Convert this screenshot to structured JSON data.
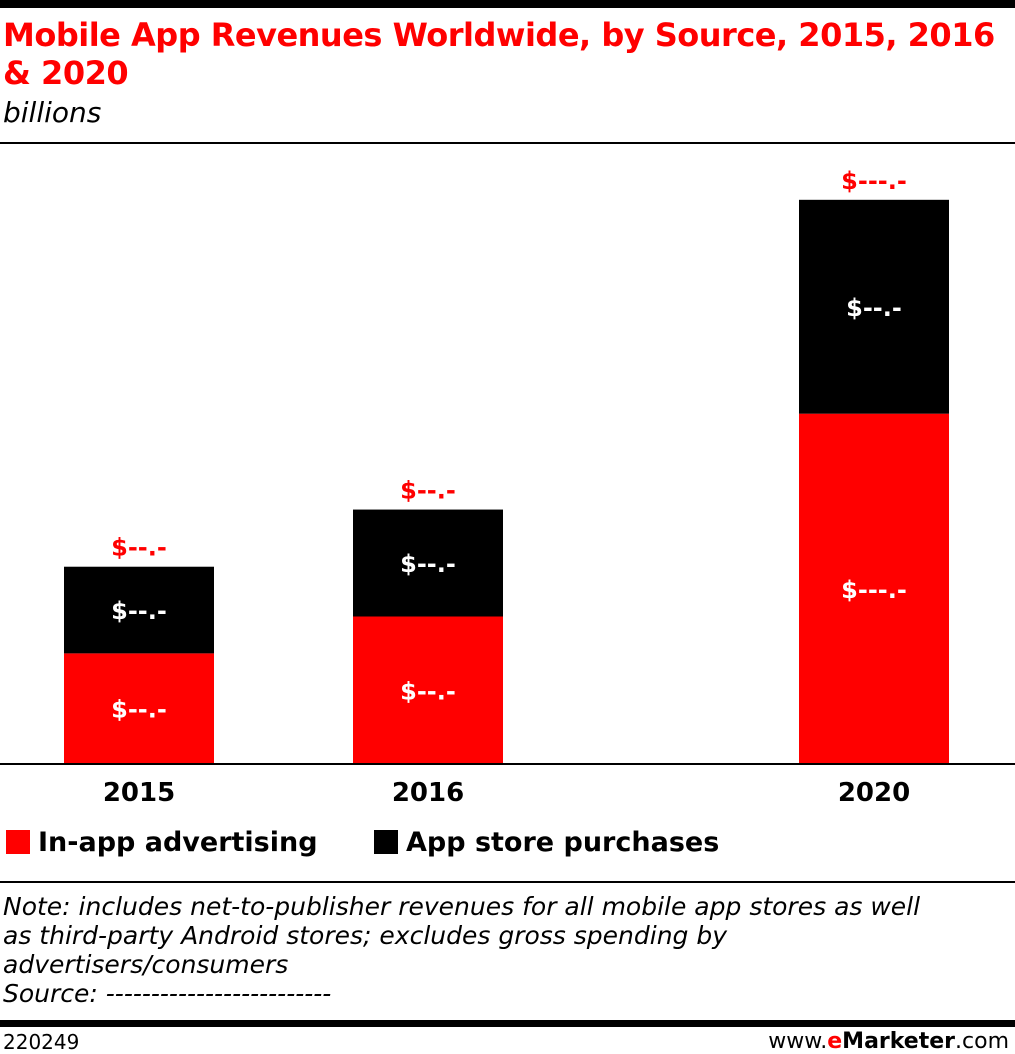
{
  "header": {
    "title": "Mobile App Revenues Worldwide, by Source, 2015, 2016 & 2020",
    "subtitle": "billions"
  },
  "chart_data": {
    "type": "bar",
    "stacked": true,
    "categories": [
      "2015",
      "2016",
      "2020"
    ],
    "series": [
      {
        "name": "In-app advertising",
        "color": "#ff0000",
        "label_color": "#ffffff",
        "values": [
          30,
          40,
          95
        ],
        "labels": [
          "$--.-",
          "$--.-",
          "$---.-"
        ]
      },
      {
        "name": "App store purchases",
        "color": "#000000",
        "label_color": "#ffffff",
        "values": [
          23.5,
          29,
          58
        ],
        "labels": [
          "$--.-",
          "$--.-",
          "$--.-"
        ]
      }
    ],
    "totals": {
      "labels": [
        "$--.-",
        "$--.-",
        "$---.-"
      ],
      "color": "#ff0000"
    },
    "ylim": [
      0,
      160
    ],
    "grid": false,
    "legend_position": "bottom-left"
  },
  "legend": {
    "items": [
      {
        "label": "In-app advertising",
        "color": "#ff0000"
      },
      {
        "label": "App store purchases",
        "color": "#000000"
      }
    ]
  },
  "footer": {
    "note_lines": [
      "Note: includes net-to-publisher revenues for all mobile app stores as well",
      "as third-party Android stores; excludes gross spending by",
      "advertisers/consumers"
    ],
    "source": "Source: -------------------------",
    "chart_id": "220249",
    "brand": {
      "prefix": "www.",
      "e": "e",
      "mark": "Marketer",
      "suffix": ".com"
    }
  }
}
